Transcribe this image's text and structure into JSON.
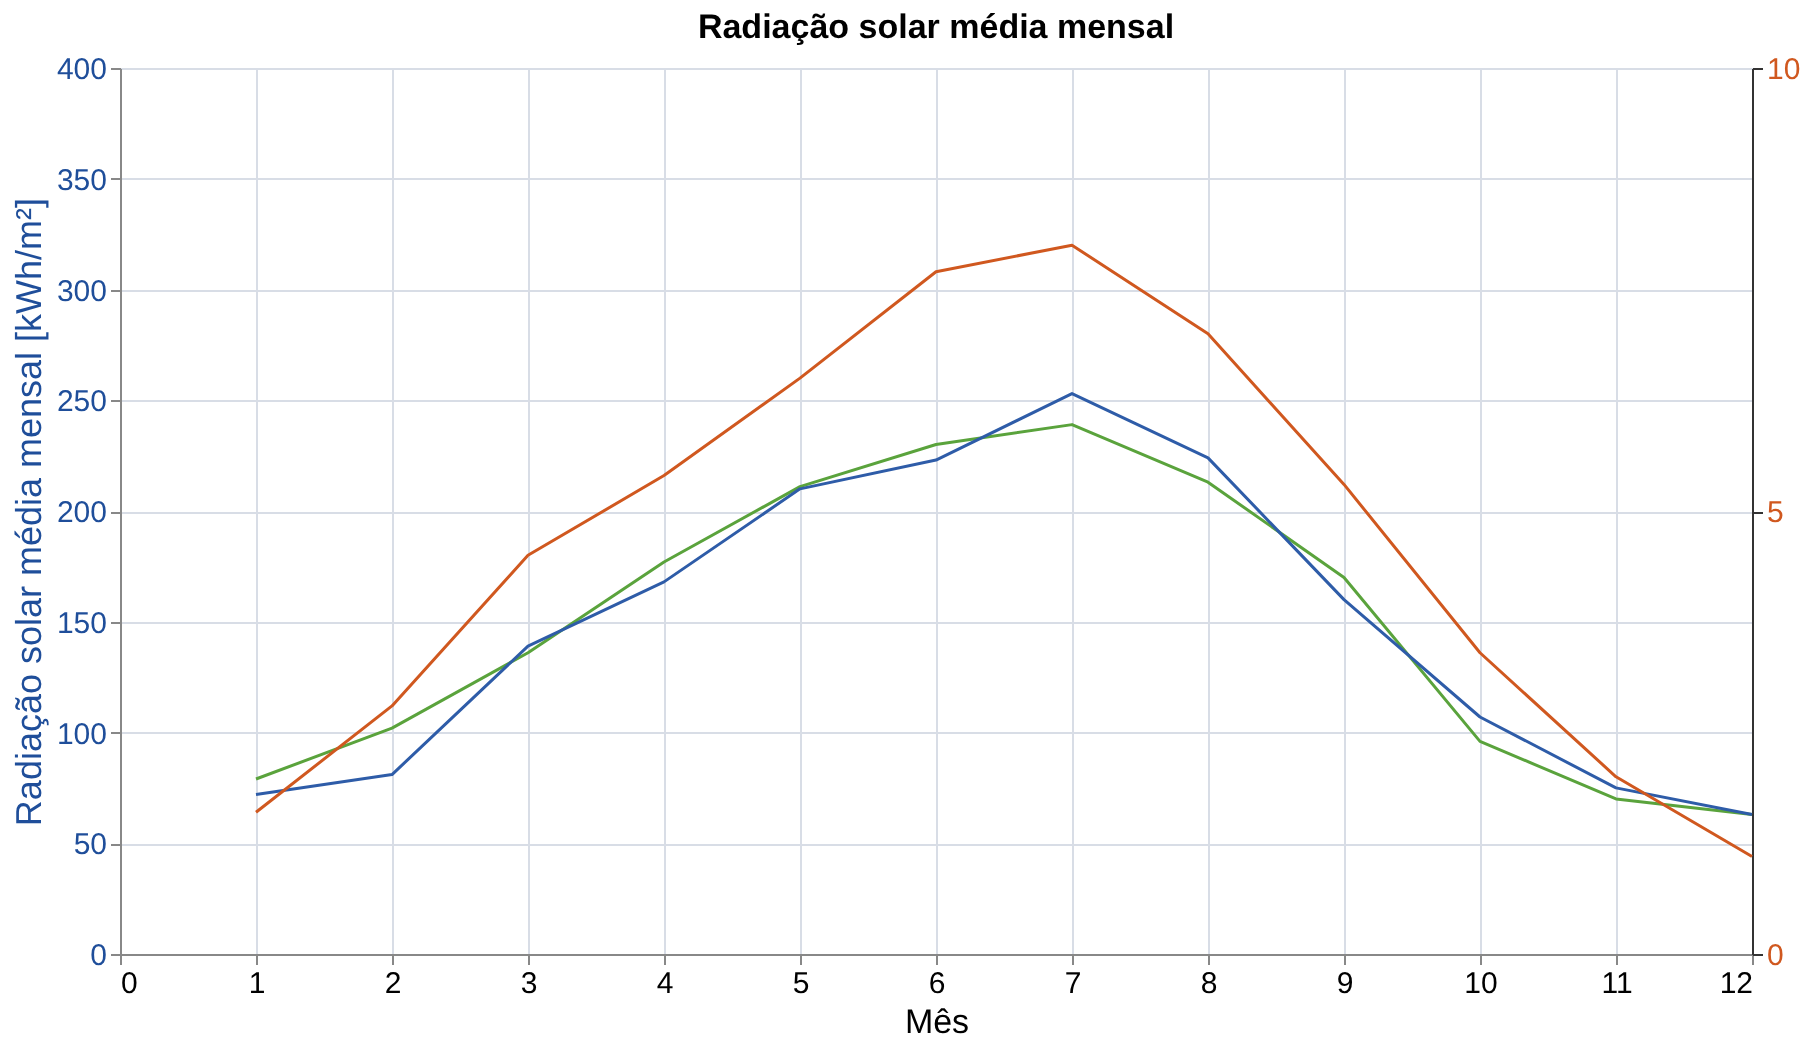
{
  "chart_data": {
    "type": "line",
    "title": "Radiação solar média mensal",
    "xlabel": "Mês",
    "ylabel": "Radiação solar média mensal [kWh/m²]",
    "x": [
      1,
      2,
      3,
      4,
      5,
      6,
      7,
      8,
      9,
      10,
      11,
      12
    ],
    "series": [
      {
        "color": "#5aa33c",
        "values": [
          79,
          102,
          136,
          177,
          211,
          230,
          239,
          213,
          170,
          96,
          70,
          63
        ]
      },
      {
        "color": "#2e5ca8",
        "values": [
          72,
          81,
          139,
          168,
          210,
          223,
          253,
          224,
          160,
          107,
          75,
          63
        ]
      },
      {
        "color": "#d0581f",
        "axis": "y2",
        "values": [
          1.6,
          2.8,
          4.5,
          5.4,
          6.5,
          7.7,
          8.0,
          7.0,
          5.3,
          3.4,
          2.0,
          1.1
        ]
      }
    ],
    "xlim": [
      0,
      12
    ],
    "xticks": [
      0,
      1,
      2,
      3,
      4,
      5,
      6,
      7,
      8,
      9,
      10,
      11,
      12
    ],
    "ylim": [
      0,
      400
    ],
    "yticks": [
      0,
      50,
      100,
      150,
      200,
      250,
      300,
      350,
      400
    ],
    "y2lim": [
      0,
      10
    ],
    "y2ticks": [
      0,
      5,
      10
    ],
    "grid": true,
    "marker": "none",
    "line_style": "solid"
  }
}
